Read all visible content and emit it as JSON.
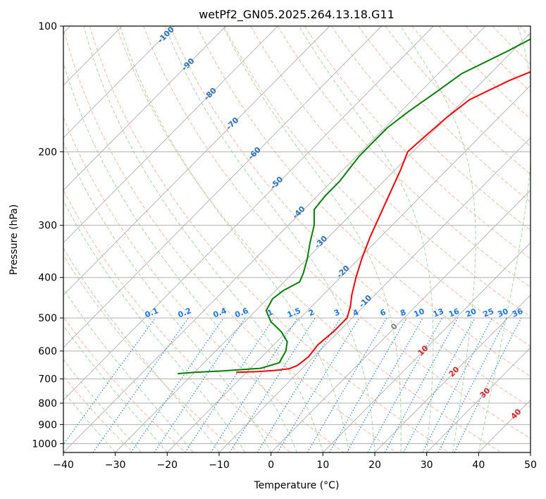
{
  "chart_data": {
    "type": "skew-t",
    "title": "wetPf2_GN05.2025.264.13.18.G11",
    "xlabel": "Temperature (°C)",
    "ylabel": "Pressure (hPa)",
    "xlim": [
      -40,
      50
    ],
    "ylim": [
      1050,
      100
    ],
    "y_scale": "log",
    "x_ticks": [
      "−40",
      "−30",
      "−20",
      "−10",
      "0",
      "10",
      "20",
      "30",
      "40",
      "50"
    ],
    "y_ticks": [
      {
        "value": 1000,
        "label": "1000"
      },
      {
        "value": 900,
        "label": "900"
      },
      {
        "value": 800,
        "label": "800"
      },
      {
        "value": 700,
        "label": "700"
      },
      {
        "value": 600,
        "label": "600"
      },
      {
        "value": 500,
        "label": "500"
      },
      {
        "value": 400,
        "label": "400"
      },
      {
        "value": 300,
        "label": "300"
      },
      {
        "value": 200,
        "label": "200"
      },
      {
        "value": 100,
        "label": "100"
      }
    ],
    "grid": true,
    "colors": {
      "temperature": "#ff0000",
      "dewpoint": "#008000",
      "isotherm": "#b0b0b0",
      "dry_adiabat": "#ffa080",
      "moist_adiabat": "#90d090",
      "mixing_ratio": "#1f77e6",
      "contour_blue": "#2a70b8",
      "contour_red": "#d62728",
      "contour_zero": "#808080"
    },
    "temperature_profile": [
      {
        "p": 675,
        "t": -22
      },
      {
        "p": 672,
        "t": -18
      },
      {
        "p": 668,
        "t": -15
      },
      {
        "p": 662,
        "t": -12.5
      },
      {
        "p": 650,
        "t": -11.5
      },
      {
        "p": 620,
        "t": -11
      },
      {
        "p": 580,
        "t": -11.5
      },
      {
        "p": 540,
        "t": -11
      },
      {
        "p": 500,
        "t": -11
      },
      {
        "p": 470,
        "t": -12.5
      },
      {
        "p": 440,
        "t": -14.5
      },
      {
        "p": 400,
        "t": -17
      },
      {
        "p": 360,
        "t": -19.5
      },
      {
        "p": 320,
        "t": -22
      },
      {
        "p": 280,
        "t": -24.5
      },
      {
        "p": 245,
        "t": -27
      },
      {
        "p": 220,
        "t": -29
      },
      {
        "p": 200,
        "t": -31
      },
      {
        "p": 180,
        "t": -30.5
      },
      {
        "p": 165,
        "t": -30
      },
      {
        "p": 150,
        "t": -29
      },
      {
        "p": 135,
        "t": -25
      },
      {
        "p": 120,
        "t": -19
      },
      {
        "p": 110,
        "t": -15
      },
      {
        "p": 100,
        "t": -11
      }
    ],
    "dewpoint_profile": [
      {
        "p": 680,
        "t": -33
      },
      {
        "p": 675,
        "t": -30
      },
      {
        "p": 670,
        "t": -25
      },
      {
        "p": 660,
        "t": -18
      },
      {
        "p": 640,
        "t": -15.5
      },
      {
        "p": 620,
        "t": -16
      },
      {
        "p": 600,
        "t": -16.5
      },
      {
        "p": 570,
        "t": -18
      },
      {
        "p": 540,
        "t": -21
      },
      {
        "p": 510,
        "t": -25
      },
      {
        "p": 480,
        "t": -28
      },
      {
        "p": 450,
        "t": -29
      },
      {
        "p": 430,
        "t": -28.5
      },
      {
        "p": 410,
        "t": -27
      },
      {
        "p": 390,
        "t": -28
      },
      {
        "p": 360,
        "t": -30
      },
      {
        "p": 330,
        "t": -32.5
      },
      {
        "p": 300,
        "t": -35
      },
      {
        "p": 275,
        "t": -38
      },
      {
        "p": 255,
        "t": -38.5
      },
      {
        "p": 235,
        "t": -38.5
      },
      {
        "p": 220,
        "t": -39
      },
      {
        "p": 205,
        "t": -39.5
      },
      {
        "p": 190,
        "t": -39.5
      },
      {
        "p": 175,
        "t": -39.5
      },
      {
        "p": 160,
        "t": -38.5
      },
      {
        "p": 145,
        "t": -37
      },
      {
        "p": 130,
        "t": -35.5
      },
      {
        "p": 115,
        "t": -31
      },
      {
        "p": 100,
        "t": -26.5
      }
    ],
    "mixing_ratio_labels": [
      "0.1",
      "0.2",
      "0.4",
      "0.6",
      "1",
      "1.5",
      "2",
      "3",
      "4",
      "6",
      "8",
      "10",
      "13",
      "16",
      "20",
      "25",
      "30",
      "36"
    ],
    "blue_contour_labels": [
      "-100",
      "-90",
      "-80",
      "-70",
      "-60",
      "-50",
      "-40",
      "-30",
      "-20",
      "-10"
    ],
    "zero_contour_label": "0",
    "red_contour_labels": [
      "10",
      "20",
      "30",
      "40"
    ]
  }
}
